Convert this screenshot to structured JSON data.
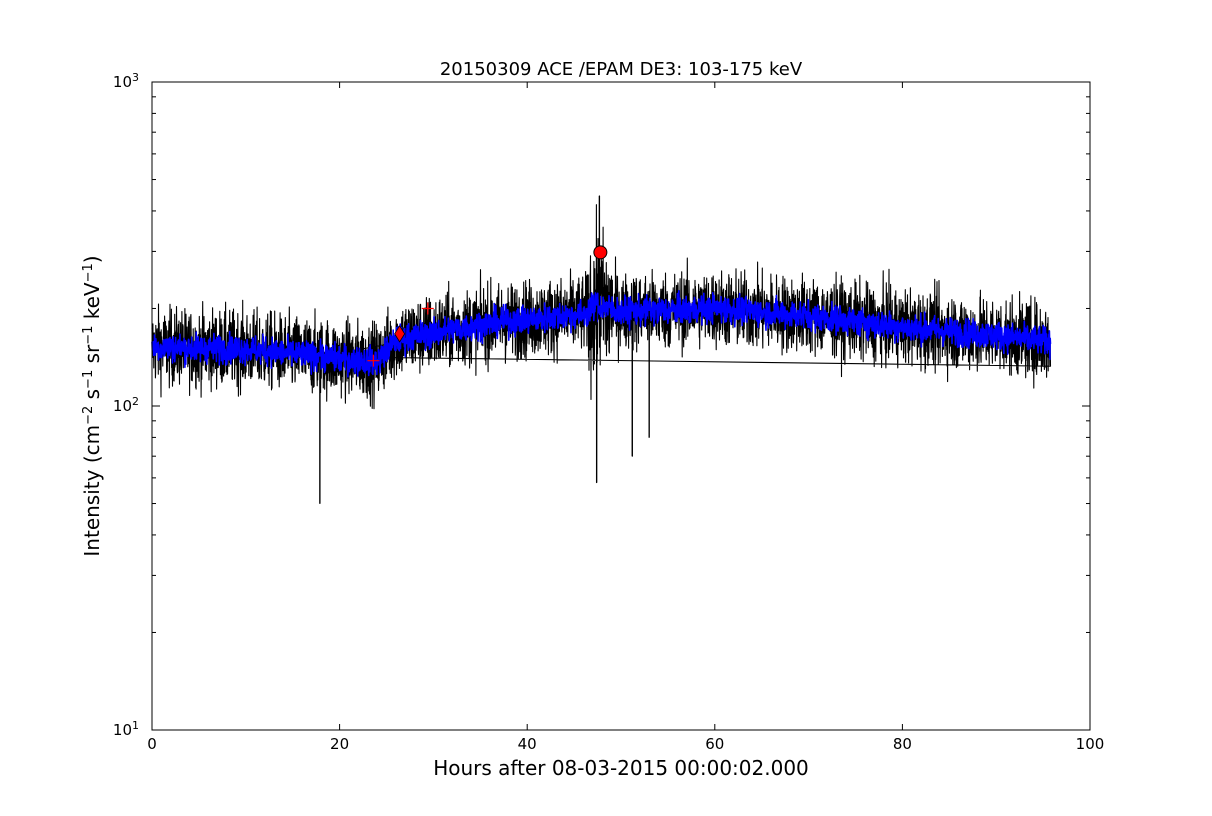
{
  "chart_data": {
    "type": "line",
    "title": "20150309 ACE /EPAM DE3: 103-175 keV",
    "xlabel": "Hours after 08-03-2015 00:00:02.000",
    "ylabel": "Intensity (cm^-2 s^-1 sr^-1 keV^-1)",
    "ylabel_parts": {
      "main": "Intensity (cm",
      "e1": "−2",
      "s": " s",
      "e2": "−1",
      "sr": " sr",
      "e3": "−1",
      "kev": " keV",
      "e4": "−1",
      "close": ")"
    },
    "xlim": [
      0,
      100
    ],
    "ylim": [
      10,
      1000
    ],
    "yscale": "log",
    "grid": false,
    "x_ticks": [
      {
        "value": 0,
        "label": "0"
      },
      {
        "value": 20,
        "label": "20"
      },
      {
        "value": 40,
        "label": "40"
      },
      {
        "value": 60,
        "label": "60"
      },
      {
        "value": 80,
        "label": "80"
      },
      {
        "value": 100,
        "label": "100"
      }
    ],
    "y_ticks": [
      {
        "value": 10,
        "base": "10",
        "exp": "1"
      },
      {
        "value": 100,
        "base": "10",
        "exp": "2"
      },
      {
        "value": 1000,
        "base": "10",
        "exp": "3"
      }
    ],
    "series": [
      {
        "color": "#000000",
        "style": "noisy-line",
        "x_range": [
          0,
          95.8
        ],
        "trend": [
          [
            0,
            152
          ],
          [
            10,
            150
          ],
          [
            20,
            140
          ],
          [
            24,
            137
          ],
          [
            26,
            160
          ],
          [
            30,
            168
          ],
          [
            36,
            180
          ],
          [
            40,
            185
          ],
          [
            46,
            192
          ],
          [
            47.5,
            205
          ],
          [
            50,
            195
          ],
          [
            60,
            200
          ],
          [
            70,
            190
          ],
          [
            80,
            175
          ],
          [
            90,
            165
          ],
          [
            95.8,
            158
          ]
        ],
        "spread_factor": 1.42,
        "spikes": [
          [
            17.9,
            50
          ],
          [
            47.7,
            445
          ],
          [
            47.4,
            58
          ],
          [
            51.2,
            70
          ],
          [
            53.0,
            80
          ]
        ]
      },
      {
        "color": "#0000ff",
        "style": "smoothed-band",
        "x_range": [
          0,
          95.8
        ],
        "trend": [
          [
            0,
            152
          ],
          [
            10,
            150
          ],
          [
            20,
            140
          ],
          [
            24,
            137
          ],
          [
            26,
            160
          ],
          [
            30,
            168
          ],
          [
            36,
            180
          ],
          [
            40,
            185
          ],
          [
            46,
            192
          ],
          [
            47.5,
            205
          ],
          [
            50,
            195
          ],
          [
            60,
            200
          ],
          [
            70,
            190
          ],
          [
            80,
            175
          ],
          [
            90,
            165
          ],
          [
            95.8,
            158
          ]
        ],
        "spread_factor": 1.14
      }
    ],
    "markers": [
      {
        "shape": "plus",
        "x": 23.6,
        "y": 138,
        "color": "#ff0000"
      },
      {
        "shape": "diamond",
        "x": 26.4,
        "y": 167,
        "color": "#ff0000"
      },
      {
        "shape": "plus",
        "x": 29.4,
        "y": 200,
        "color": "#ff0000"
      },
      {
        "shape": "circle",
        "x": 47.8,
        "y": 298,
        "color": "#ff0000"
      }
    ]
  }
}
